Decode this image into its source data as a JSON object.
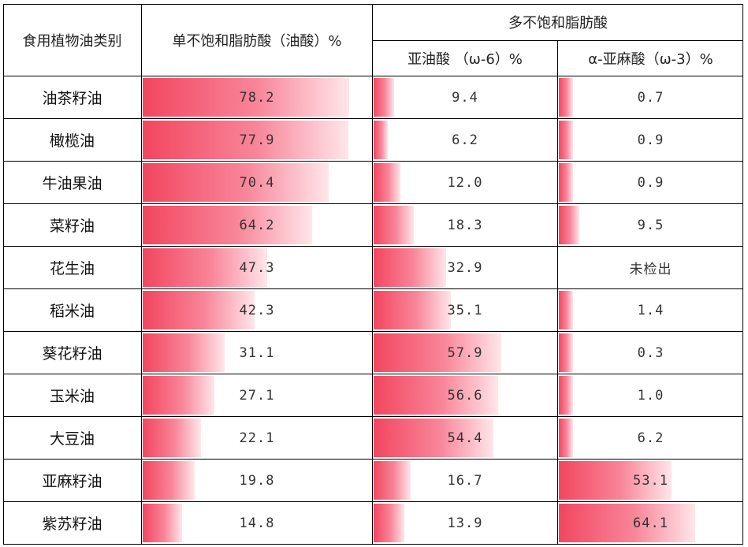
{
  "headers": {
    "category": "食用植物油类别",
    "mufa": "单不饱和脂肪酸（油酸）%",
    "pufa": "多不饱和脂肪酸",
    "la": "亚油酸 （ω-6）%",
    "ala": "α-亚麻酸（ω-3）%"
  },
  "rows": [
    {
      "name": "油茶籽油",
      "mufa": "78.2",
      "la": "9.4",
      "ala": "0.7"
    },
    {
      "name": "橄榄油",
      "mufa": "77.9",
      "la": "6.2",
      "ala": "0.9"
    },
    {
      "name": "牛油果油",
      "mufa": "70.4",
      "la": "12.0",
      "ala": "0.9"
    },
    {
      "name": "菜籽油",
      "mufa": "64.2",
      "la": "18.3",
      "ala": "9.5"
    },
    {
      "name": "花生油",
      "mufa": "47.3",
      "la": "32.9",
      "ala": "未检出"
    },
    {
      "name": "稻米油",
      "mufa": "42.3",
      "la": "35.1",
      "ala": "1.4"
    },
    {
      "name": "葵花籽油",
      "mufa": "31.1",
      "la": "57.9",
      "ala": "0.3"
    },
    {
      "name": "玉米油",
      "mufa": "27.1",
      "la": "56.6",
      "ala": "1.0"
    },
    {
      "name": "大豆油",
      "mufa": "22.1",
      "la": "54.4",
      "ala": "6.2"
    },
    {
      "name": "亚麻籽油",
      "mufa": "19.8",
      "la": "16.7",
      "ala": "53.1"
    },
    {
      "name": "紫苏籽油",
      "mufa": "14.8",
      "la": "13.9",
      "ala": "64.1"
    }
  ],
  "bar_color": "#f2465f"
}
